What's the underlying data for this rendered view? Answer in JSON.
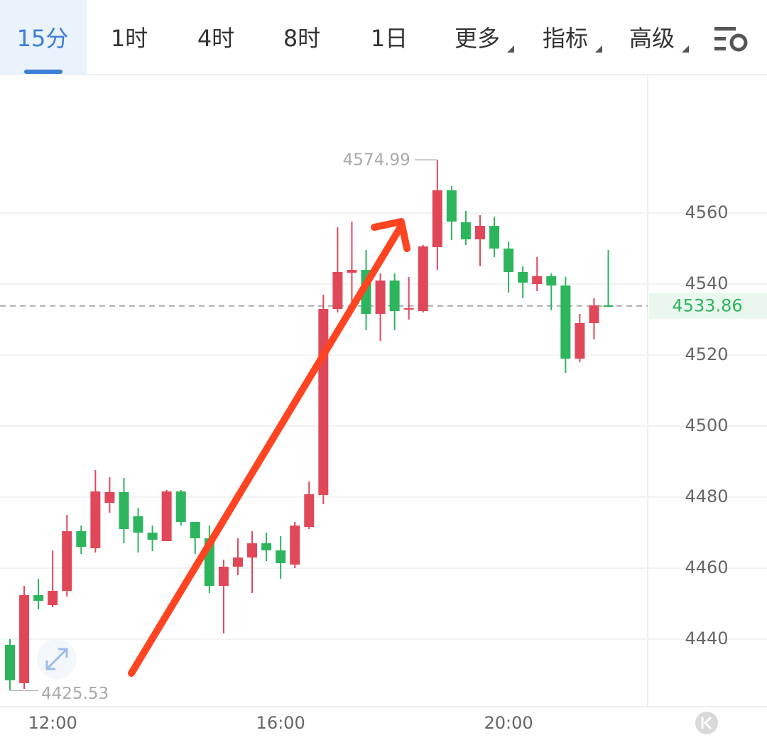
{
  "tabs": [
    "15分",
    "1时",
    "4时",
    "8时",
    "1日",
    "更多",
    "指标",
    "高级"
  ],
  "active_tab": 0,
  "chart_data": {
    "type": "candlestick",
    "categories": [
      null,
      null,
      null,
      "12:00",
      null,
      null,
      null,
      null,
      null,
      null,
      null,
      null,
      null,
      null,
      null,
      null,
      null,
      null,
      null,
      "16:00",
      null,
      null,
      null,
      null,
      null,
      null,
      null,
      null,
      null,
      null,
      null,
      null,
      null,
      null,
      null,
      "20:00",
      null,
      null,
      null,
      null,
      null,
      null,
      null
    ],
    "open": [
      4438.4,
      4427.6,
      4452.4,
      4449.6,
      4453.6,
      4470.4,
      4465.6,
      4478.4,
      4481.4,
      4474.6,
      4470,
      4467.6,
      4481.6,
      4473,
      4468.4,
      4455,
      4460.4,
      4463,
      4467,
      4465,
      4461,
      4471.6,
      4480.6,
      4533,
      4543.2,
      4544,
      4531.6,
      4541,
      4532.8,
      4532.4,
      4550.4,
      4566.4,
      4557.4,
      4552.6,
      4556.4,
      4550,
      4543.4,
      4540,
      4542.2,
      4539.6,
      4519,
      4529,
      4534
    ],
    "high": [
      4440,
      4455,
      4457,
      4465,
      4475,
      4472,
      4487.6,
      4485.6,
      4485.4,
      4477,
      4472,
      4482,
      4482,
      4473,
      4472,
      4462.4,
      4468.4,
      4470.4,
      4470,
      4469,
      4473,
      4484.4,
      4537,
      4556,
      4557.6,
      4549.6,
      4543,
      4543,
      4542,
      4551,
      4574.99,
      4567.6,
      4560.6,
      4559.4,
      4559,
      4552,
      4545,
      4547.6,
      4543,
      4542,
      4531.6,
      4536,
      4549.6
    ],
    "low": [
      4425.53,
      4426,
      4448.4,
      4449,
      4452,
      4464,
      4464.4,
      4475.6,
      4467,
      4464.4,
      4464.8,
      4467.6,
      4472,
      4464,
      4453,
      4441.6,
      4458,
      4453,
      4462,
      4457,
      4460,
      4471,
      4478,
      4532,
      4532,
      4527,
      4524,
      4527,
      4530,
      4532,
      4544,
      4552.4,
      4551,
      4545,
      4547.6,
      4537.6,
      4536,
      4538,
      4532.6,
      4515,
      4518,
      4524.4,
      4533.86
    ],
    "close": [
      4428.4,
      4452.4,
      4450.8,
      4453.6,
      4470.4,
      4466,
      4481.6,
      4481.4,
      4471,
      4470,
      4468,
      4481.6,
      4473,
      4468.4,
      4455,
      4460.4,
      4463,
      4467,
      4465,
      4461.4,
      4472,
      4480.8,
      4533,
      4543.4,
      4544,
      4531.6,
      4541,
      4532.4,
      4533.2,
      4550.6,
      4566.4,
      4557.6,
      4552.6,
      4556.4,
      4550,
      4543.4,
      4540.4,
      4542.2,
      4539.6,
      4519,
      4529,
      4534,
      4533.86
    ],
    "up_color": "#e0485a",
    "down_color": "#2db55d",
    "ylim": [
      4421,
      4599
    ],
    "yticks": [
      4440,
      4460,
      4480,
      4500,
      4520,
      4540,
      4560
    ],
    "grid": true,
    "high_label": 4574.99,
    "low_label": 4425.53,
    "last_price": 4533.86
  }
}
